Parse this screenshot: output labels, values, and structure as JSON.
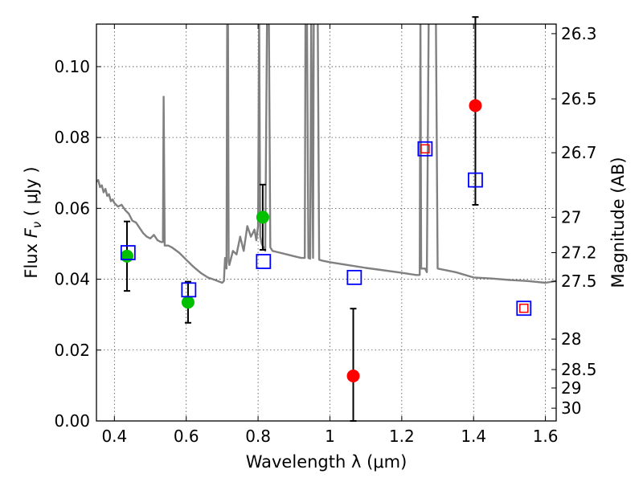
{
  "chart_data": {
    "type": "scatter",
    "title": "",
    "xlabel": "Wavelength  λ (μm)",
    "ylabel": "Flux  F_ν  ( μJy )",
    "ylabel_parts": {
      "prefix": "Flux  ",
      "symbol": "F",
      "subscript": "ν",
      "suffix": "  ( μJy )"
    },
    "ylabel_right": "Magnitude (AB)",
    "xlim": [
      0.35,
      1.63
    ],
    "ylim": [
      0.0,
      0.112
    ],
    "grid": true,
    "x_ticks": [
      {
        "value": 0.4,
        "label": "0.4"
      },
      {
        "value": 0.6,
        "label": "0.6"
      },
      {
        "value": 0.8,
        "label": "0.8"
      },
      {
        "value": 1.0,
        "label": "1"
      },
      {
        "value": 1.2,
        "label": "1.2"
      },
      {
        "value": 1.4,
        "label": "1.4"
      },
      {
        "value": 1.6,
        "label": "1.6"
      }
    ],
    "y_ticks": [
      {
        "value": 0.0,
        "label": "0.00"
      },
      {
        "value": 0.02,
        "label": "0.02"
      },
      {
        "value": 0.04,
        "label": "0.04"
      },
      {
        "value": 0.06,
        "label": "0.06"
      },
      {
        "value": 0.08,
        "label": "0.08"
      },
      {
        "value": 0.1,
        "label": "0.10"
      }
    ],
    "mag_ticks": [
      {
        "flux": 0.1093,
        "label": "26.3"
      },
      {
        "flux": 0.0909,
        "label": "26.5"
      },
      {
        "flux": 0.0757,
        "label": "26.7"
      },
      {
        "flux": 0.0575,
        "label": "27"
      },
      {
        "flux": 0.0475,
        "label": "27.2"
      },
      {
        "flux": 0.0394,
        "label": "27.5"
      },
      {
        "flux": 0.0231,
        "label": "28"
      },
      {
        "flux": 0.0145,
        "label": "28.5"
      },
      {
        "flux": 0.0093,
        "label": "29"
      },
      {
        "flux": 0.0036,
        "label": "30"
      }
    ],
    "series": [
      {
        "name": "SED model",
        "kind": "line",
        "color": "#808080",
        "points": [
          [
            0.35,
            0.0675
          ],
          [
            0.355,
            0.068
          ],
          [
            0.36,
            0.066
          ],
          [
            0.365,
            0.0665
          ],
          [
            0.37,
            0.0645
          ],
          [
            0.375,
            0.0655
          ],
          [
            0.38,
            0.0635
          ],
          [
            0.385,
            0.064
          ],
          [
            0.39,
            0.062
          ],
          [
            0.395,
            0.0625
          ],
          [
            0.4,
            0.0615
          ],
          [
            0.41,
            0.0605
          ],
          [
            0.42,
            0.061
          ],
          [
            0.43,
            0.0595
          ],
          [
            0.44,
            0.0585
          ],
          [
            0.45,
            0.0565
          ],
          [
            0.46,
            0.056
          ],
          [
            0.47,
            0.0545
          ],
          [
            0.48,
            0.053
          ],
          [
            0.49,
            0.052
          ],
          [
            0.5,
            0.0515
          ],
          [
            0.51,
            0.0525
          ],
          [
            0.52,
            0.051
          ],
          [
            0.53,
            0.0505
          ],
          [
            0.535,
            0.0505
          ],
          [
            0.537,
            0.0915
          ],
          [
            0.54,
            0.0495
          ],
          [
            0.55,
            0.0495
          ],
          [
            0.56,
            0.049
          ],
          [
            0.58,
            0.0475
          ],
          [
            0.6,
            0.0455
          ],
          [
            0.62,
            0.0435
          ],
          [
            0.64,
            0.0418
          ],
          [
            0.66,
            0.0405
          ],
          [
            0.68,
            0.0398
          ],
          [
            0.7,
            0.039
          ],
          [
            0.705,
            0.0395
          ],
          [
            0.708,
            0.046
          ],
          [
            0.712,
            0.043
          ],
          [
            0.714,
            0.115
          ],
          [
            0.716,
            0.115
          ],
          [
            0.718,
            0.045
          ],
          [
            0.72,
            0.044
          ],
          [
            0.73,
            0.048
          ],
          [
            0.74,
            0.047
          ],
          [
            0.75,
            0.052
          ],
          [
            0.76,
            0.048
          ],
          [
            0.77,
            0.055
          ],
          [
            0.78,
            0.052
          ],
          [
            0.79,
            0.054
          ],
          [
            0.795,
            0.051
          ],
          [
            0.8,
            0.055
          ],
          [
            0.803,
            0.115
          ],
          [
            0.806,
            0.052
          ],
          [
            0.81,
            0.05
          ],
          [
            0.82,
            0.048
          ],
          [
            0.825,
            0.115
          ],
          [
            0.83,
            0.115
          ],
          [
            0.834,
            0.049
          ],
          [
            0.84,
            0.048
          ],
          [
            0.86,
            0.0475
          ],
          [
            0.88,
            0.047
          ],
          [
            0.9,
            0.0465
          ],
          [
            0.92,
            0.046
          ],
          [
            0.93,
            0.046
          ],
          [
            0.932,
            0.115
          ],
          [
            0.936,
            0.115
          ],
          [
            0.94,
            0.046
          ],
          [
            0.945,
            0.0458
          ],
          [
            0.948,
            0.115
          ],
          [
            0.953,
            0.046
          ],
          [
            0.955,
            0.115
          ],
          [
            0.958,
            0.115
          ],
          [
            0.962,
            0.115
          ],
          [
            0.966,
            0.115
          ],
          [
            0.97,
            0.0455
          ],
          [
            0.98,
            0.0452
          ],
          [
            1.0,
            0.0448
          ],
          [
            1.05,
            0.044
          ],
          [
            1.1,
            0.0432
          ],
          [
            1.15,
            0.0425
          ],
          [
            1.2,
            0.0418
          ],
          [
            1.24,
            0.0412
          ],
          [
            1.25,
            0.0412
          ],
          [
            1.252,
            0.115
          ],
          [
            1.254,
            0.043
          ],
          [
            1.265,
            0.043
          ],
          [
            1.27,
            0.042
          ],
          [
            1.275,
            0.115
          ],
          [
            1.28,
            0.115
          ],
          [
            1.285,
            0.115
          ],
          [
            1.29,
            0.115
          ],
          [
            1.295,
            0.115
          ],
          [
            1.3,
            0.043
          ],
          [
            1.35,
            0.042
          ],
          [
            1.4,
            0.0405
          ],
          [
            1.45,
            0.0402
          ],
          [
            1.5,
            0.0398
          ],
          [
            1.55,
            0.0395
          ],
          [
            1.6,
            0.039
          ],
          [
            1.63,
            0.0395
          ]
        ]
      },
      {
        "name": "Observed (green)",
        "kind": "points",
        "color": "#00c000",
        "points": [
          {
            "x": 0.435,
            "y": 0.0465,
            "err": 0.0098
          },
          {
            "x": 0.605,
            "y": 0.0335,
            "err": 0.0058
          },
          {
            "x": 0.813,
            "y": 0.0575,
            "err": 0.0092
          }
        ]
      },
      {
        "name": "Observed (red)",
        "kind": "points",
        "color": "#ff0000",
        "points": [
          {
            "x": 1.065,
            "y": 0.0127,
            "err_lo": 0.0127,
            "err_hi": 0.019
          },
          {
            "x": 1.405,
            "y": 0.089,
            "err_lo": 0.028,
            "err_hi": 0.025
          }
        ]
      },
      {
        "name": "Model photometry",
        "kind": "squares",
        "color": "#0000ff",
        "points": [
          {
            "x": 0.438,
            "y": 0.0475
          },
          {
            "x": 0.607,
            "y": 0.037
          },
          {
            "x": 0.815,
            "y": 0.045
          },
          {
            "x": 1.068,
            "y": 0.0405
          },
          {
            "x": 1.265,
            "y": 0.0768
          },
          {
            "x": 1.405,
            "y": 0.068
          },
          {
            "x": 1.54,
            "y": 0.0318
          }
        ]
      },
      {
        "name": "Model photometry (inner)",
        "kind": "small-squares",
        "color": "#ff0000",
        "points": [
          {
            "x": 1.265,
            "y": 0.0768
          },
          {
            "x": 1.54,
            "y": 0.0318
          }
        ]
      }
    ]
  }
}
